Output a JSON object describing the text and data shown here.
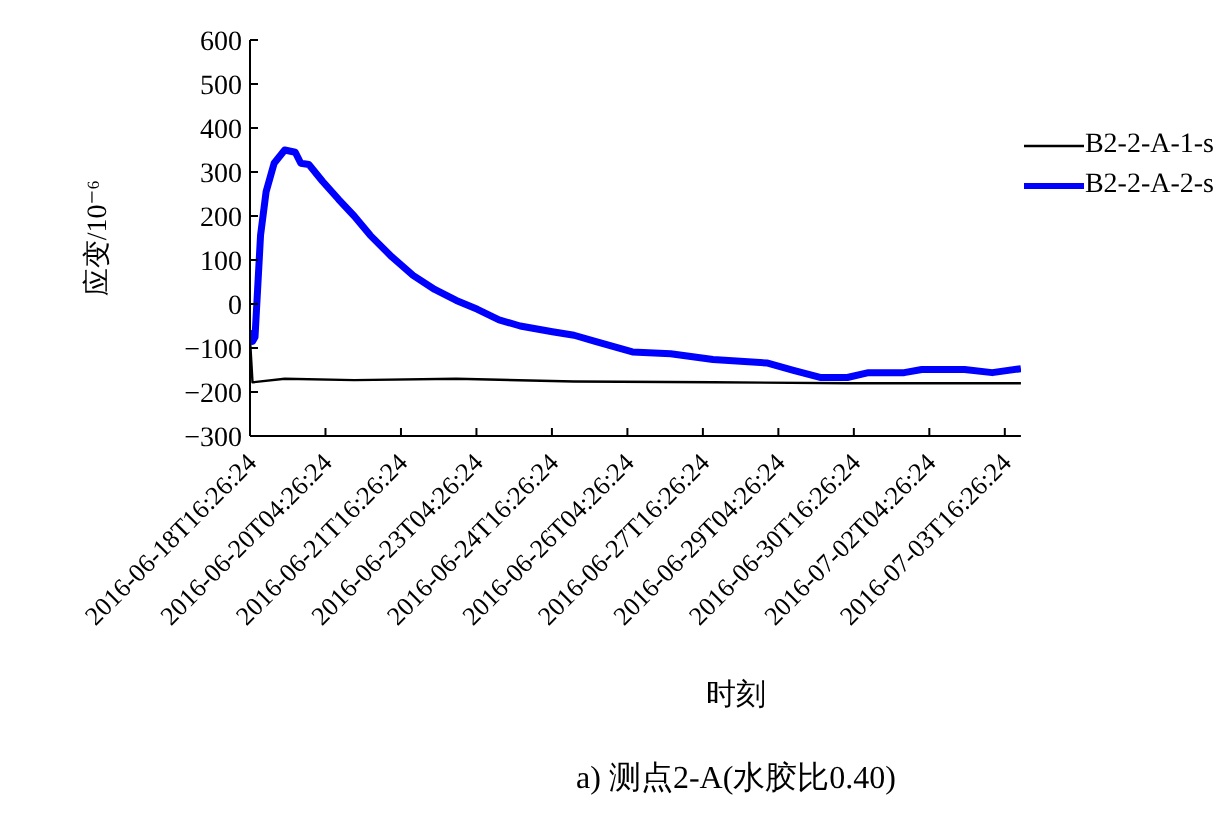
{
  "chart_data": {
    "type": "line",
    "xlabel": "时刻",
    "ylabel": "应变/10⁻⁶",
    "annotations": [
      "a) 测点2-A(水胶比0.40)"
    ],
    "xlim": [
      "2016-06-18T16:26:24",
      "2016-07-04T00:07"
    ],
    "xticks": [
      "2016-06-18T16:26:24",
      "2016-06-20T04:26:24",
      "2016-06-21T16:26:24",
      "2016-06-23T04:26:24",
      "2016-06-24T16:26:24",
      "2016-06-26T04:26:24",
      "2016-06-27T16:26:24",
      "2016-06-29T04:26:24",
      "2016-06-30T16:26:24",
      "2016-07-02T04:26:24",
      "2016-07-03T16:26:24"
    ],
    "ylim": [
      -300,
      600
    ],
    "yticks": [
      -300,
      -200,
      -100,
      0,
      100,
      200,
      300,
      400,
      500,
      600
    ],
    "legend": "top right",
    "marker": "none",
    "line_style": "solid",
    "series": [
      {
        "name": "B2-2-A-1-s",
        "color": "#000000",
        "x": [
          "2016-06-18T16:26:24",
          "2016-06-18T17:38",
          "2016-06-19T09:00",
          "2016-06-20T18:07",
          "2016-06-22T18:50",
          "2016-06-25T03:00",
          "2016-06-27T21:14",
          "2016-06-30T13:19",
          "2016-07-02T00:50",
          "2016-07-04T00:07"
        ],
        "values": [
          -80,
          -178,
          -170,
          -173,
          -170,
          -176,
          -178,
          -180,
          -180,
          -180
        ]
      },
      {
        "name": "B2-2-A-2-s",
        "color": "#0000ff",
        "x": [
          "2016-06-18T16:26:24",
          "2016-06-18T17:38",
          "2016-06-18T18:50",
          "2016-06-18T21:28",
          "2016-06-19T00:07",
          "2016-06-19T03:57",
          "2016-06-19T09:00",
          "2016-06-19T14:02",
          "2016-06-19T16:40",
          "2016-06-19T20:31",
          "2016-06-20T03:00",
          "2016-06-20T10:40",
          "2016-06-20T18:07",
          "2016-06-21T01:48",
          "2016-06-21T12:07",
          "2016-06-21T22:12",
          "2016-06-22T08:31",
          "2016-06-22T18:50",
          "2016-06-23T04:55",
          "2016-06-23T15:14",
          "2016-06-24T01:19",
          "2016-06-24T16:40",
          "2016-06-25T03:00",
          "2016-06-25T13:04",
          "2016-06-26T06:50",
          "2016-06-27T01:04",
          "2016-06-27T21:14",
          "2016-06-28T22:55",
          "2016-06-29T11:38",
          "2016-06-30T00:21",
          "2016-06-30T13:19",
          "2016-06-30T23:24",
          "2016-07-01T16:26",
          "2016-07-02T00:50",
          "2016-07-02T21:14",
          "2016-07-03T10:26",
          "2016-07-04T00:07"
        ],
        "values": [
          -60,
          -85,
          -75,
          156,
          255,
          320,
          350,
          345,
          320,
          317,
          279,
          238,
          200,
          156,
          107,
          65,
          33,
          8,
          -12,
          -36,
          -50,
          -63,
          -71,
          -85,
          -109,
          -113,
          -126,
          -134,
          -151,
          -167,
          -167,
          -156,
          -156,
          -149,
          -149,
          -156,
          -147
        ]
      }
    ]
  }
}
